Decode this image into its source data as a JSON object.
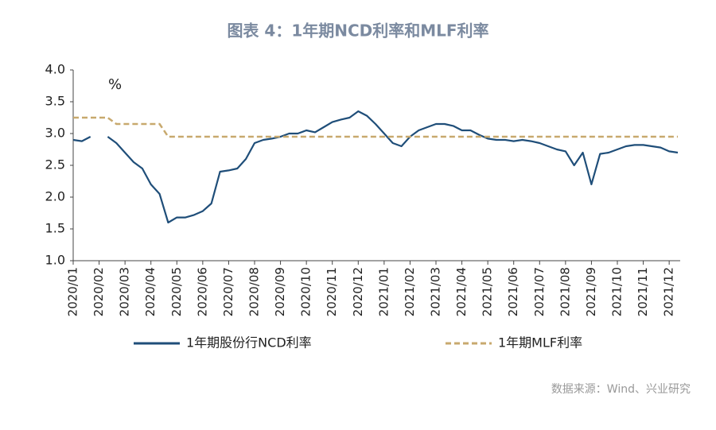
{
  "chart_data": {
    "type": "line",
    "title": "图表 4：1年期NCD利率和MLF利率",
    "unit_label": "%",
    "source": "数据来源：Wind、兴业研究",
    "categories": [
      "2020/01",
      null,
      null,
      "2020/02",
      null,
      null,
      "2020/03",
      null,
      null,
      "2020/04",
      null,
      null,
      "2020/05",
      null,
      null,
      "2020/06",
      null,
      null,
      "2020/07",
      null,
      null,
      "2020/08",
      null,
      null,
      "2020/09",
      null,
      null,
      "2020/10",
      null,
      null,
      "2020/11",
      null,
      null,
      "2020/12",
      null,
      null,
      "2021/01",
      null,
      null,
      "2021/02",
      null,
      null,
      "2021/03",
      null,
      null,
      "2021/04",
      null,
      null,
      "2021/05",
      null,
      null,
      "2021/06",
      null,
      null,
      "2021/07",
      null,
      null,
      "2021/08",
      null,
      null,
      "2021/09",
      null,
      null,
      "2021/10",
      null,
      null,
      "2021/11",
      null,
      null,
      "2021/12",
      null
    ],
    "series": [
      {
        "name": "1年期股份行NCD利率",
        "color": "#1f4e79",
        "dash": false,
        "values": [
          2.9,
          2.88,
          2.95,
          null,
          2.95,
          2.85,
          2.7,
          2.55,
          2.45,
          2.2,
          2.05,
          1.6,
          1.68,
          1.68,
          1.72,
          1.78,
          1.9,
          2.4,
          2.42,
          2.45,
          2.6,
          2.85,
          2.9,
          2.92,
          2.95,
          3.0,
          3.0,
          3.05,
          3.02,
          3.1,
          3.18,
          3.22,
          3.25,
          3.35,
          3.28,
          3.15,
          3.0,
          2.85,
          2.8,
          2.95,
          3.05,
          3.1,
          3.15,
          3.15,
          3.12,
          3.05,
          3.05,
          2.98,
          2.92,
          2.9,
          2.9,
          2.88,
          2.9,
          2.88,
          2.85,
          2.8,
          2.75,
          2.72,
          2.5,
          2.7,
          2.2,
          2.68,
          2.7,
          2.75,
          2.8,
          2.82,
          2.82,
          2.8,
          2.78,
          2.72,
          2.7
        ]
      },
      {
        "name": "1年期MLF利率",
        "color": "#c8a96e",
        "dash": true,
        "values": [
          3.25,
          3.25,
          3.25,
          3.25,
          3.25,
          3.15,
          3.15,
          3.15,
          3.15,
          3.15,
          3.15,
          2.95,
          2.95,
          2.95,
          2.95,
          2.95,
          2.95,
          2.95,
          2.95,
          2.95,
          2.95,
          2.95,
          2.95,
          2.95,
          2.95,
          2.95,
          2.95,
          2.95,
          2.95,
          2.95,
          2.95,
          2.95,
          2.95,
          2.95,
          2.95,
          2.95,
          2.95,
          2.95,
          2.95,
          2.95,
          2.95,
          2.95,
          2.95,
          2.95,
          2.95,
          2.95,
          2.95,
          2.95,
          2.95,
          2.95,
          2.95,
          2.95,
          2.95,
          2.95,
          2.95,
          2.95,
          2.95,
          2.95,
          2.95,
          2.95,
          2.95,
          2.95,
          2.95,
          2.95,
          2.95,
          2.95,
          2.95,
          2.95,
          2.95,
          2.95,
          2.95
        ]
      }
    ],
    "ylim": [
      1,
      4
    ],
    "yticks": [
      {
        "value": 1,
        "label": "1.0"
      },
      {
        "value": 1.5,
        "label": "1.5"
      },
      {
        "value": 2,
        "label": "2.0"
      },
      {
        "value": 2.5,
        "label": "2.5"
      },
      {
        "value": 3,
        "label": "3.0"
      },
      {
        "value": 3.5,
        "label": "3.5"
      },
      {
        "value": 4,
        "label": "4.0"
      }
    ],
    "grid": false,
    "legend": "bottom"
  }
}
